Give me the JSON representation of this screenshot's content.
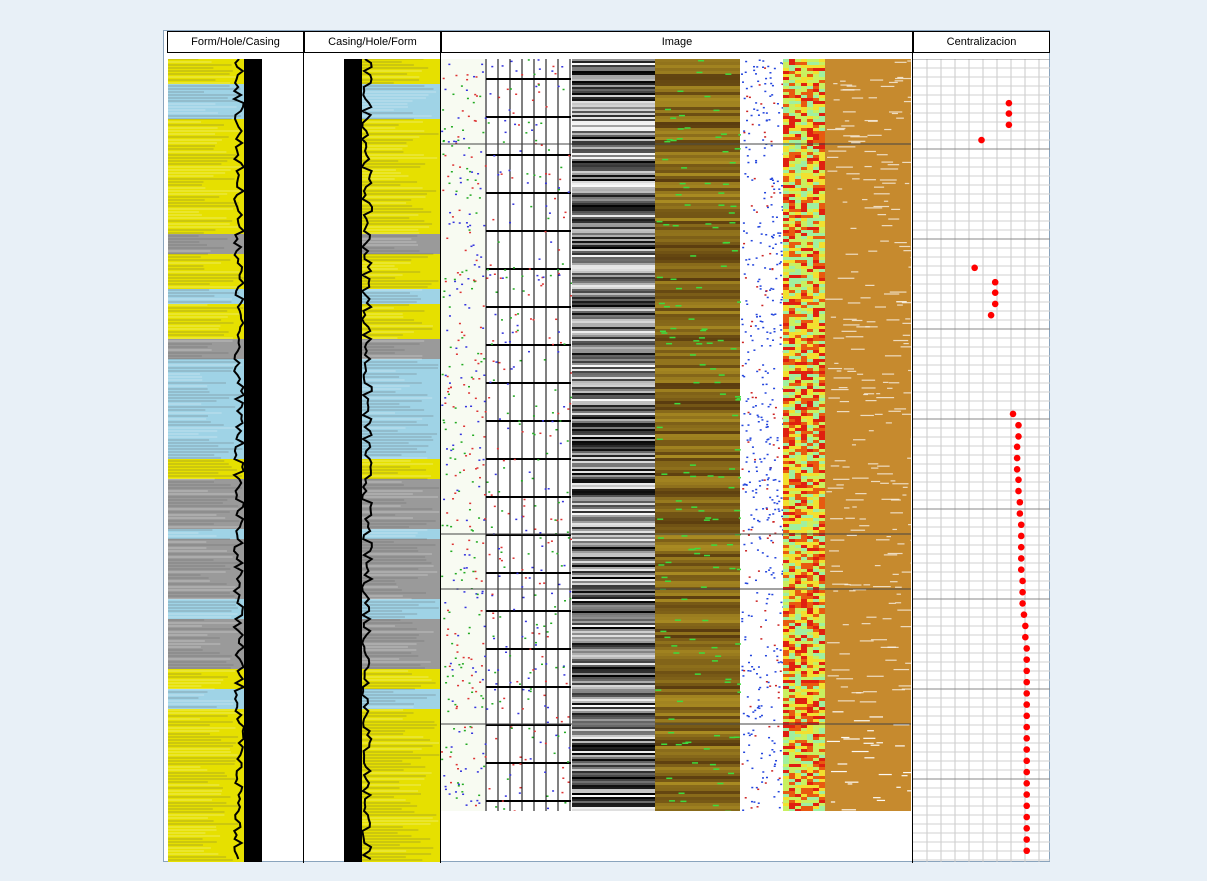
{
  "headers": {
    "track1": "Form/Hole/Casing",
    "track2": "Casing/Hole/Form",
    "track3": "Image",
    "track4": "Centralizacion"
  },
  "colors": {
    "sand": "#e6e000",
    "shale": "#9fd3e6",
    "gray": "#9a9a9a",
    "casing": "#000000",
    "image_brown": "#5a3a12",
    "image_ochre": "#c68a2e",
    "centralizer_point": "#ff0000"
  },
  "chart_data": {
    "type": "scatter",
    "title": "Centralizacion",
    "x_range": [
      0,
      1
    ],
    "y_range": [
      0,
      1
    ],
    "note_units": "normalized depth (0 = top, 1 = bottom) vs normalized standoff within track",
    "points": [
      {
        "x": 0.7,
        "y": 0.055
      },
      {
        "x": 0.7,
        "y": 0.068
      },
      {
        "x": 0.7,
        "y": 0.082
      },
      {
        "x": 0.5,
        "y": 0.101
      },
      {
        "x": 0.45,
        "y": 0.26
      },
      {
        "x": 0.6,
        "y": 0.278
      },
      {
        "x": 0.6,
        "y": 0.291
      },
      {
        "x": 0.6,
        "y": 0.305
      },
      {
        "x": 0.57,
        "y": 0.319
      },
      {
        "x": 0.73,
        "y": 0.442
      },
      {
        "x": 0.77,
        "y": 0.456
      },
      {
        "x": 0.77,
        "y": 0.47
      },
      {
        "x": 0.76,
        "y": 0.483
      },
      {
        "x": 0.76,
        "y": 0.497
      },
      {
        "x": 0.76,
        "y": 0.511
      },
      {
        "x": 0.77,
        "y": 0.524
      },
      {
        "x": 0.77,
        "y": 0.538
      },
      {
        "x": 0.78,
        "y": 0.552
      },
      {
        "x": 0.78,
        "y": 0.566
      },
      {
        "x": 0.79,
        "y": 0.58
      },
      {
        "x": 0.79,
        "y": 0.594
      },
      {
        "x": 0.79,
        "y": 0.608
      },
      {
        "x": 0.79,
        "y": 0.622
      },
      {
        "x": 0.79,
        "y": 0.636
      },
      {
        "x": 0.8,
        "y": 0.65
      },
      {
        "x": 0.8,
        "y": 0.664
      },
      {
        "x": 0.8,
        "y": 0.678
      },
      {
        "x": 0.81,
        "y": 0.692
      },
      {
        "x": 0.82,
        "y": 0.706
      },
      {
        "x": 0.82,
        "y": 0.72
      },
      {
        "x": 0.83,
        "y": 0.734
      },
      {
        "x": 0.83,
        "y": 0.748
      },
      {
        "x": 0.83,
        "y": 0.762
      },
      {
        "x": 0.83,
        "y": 0.776
      },
      {
        "x": 0.83,
        "y": 0.79
      },
      {
        "x": 0.83,
        "y": 0.804
      },
      {
        "x": 0.83,
        "y": 0.818
      },
      {
        "x": 0.83,
        "y": 0.832
      },
      {
        "x": 0.83,
        "y": 0.846
      },
      {
        "x": 0.83,
        "y": 0.86
      },
      {
        "x": 0.83,
        "y": 0.874
      },
      {
        "x": 0.83,
        "y": 0.888
      },
      {
        "x": 0.83,
        "y": 0.902
      },
      {
        "x": 0.83,
        "y": 0.916
      },
      {
        "x": 0.83,
        "y": 0.93
      },
      {
        "x": 0.83,
        "y": 0.944
      },
      {
        "x": 0.83,
        "y": 0.958
      },
      {
        "x": 0.83,
        "y": 0.972
      },
      {
        "x": 0.83,
        "y": 0.986
      }
    ]
  }
}
